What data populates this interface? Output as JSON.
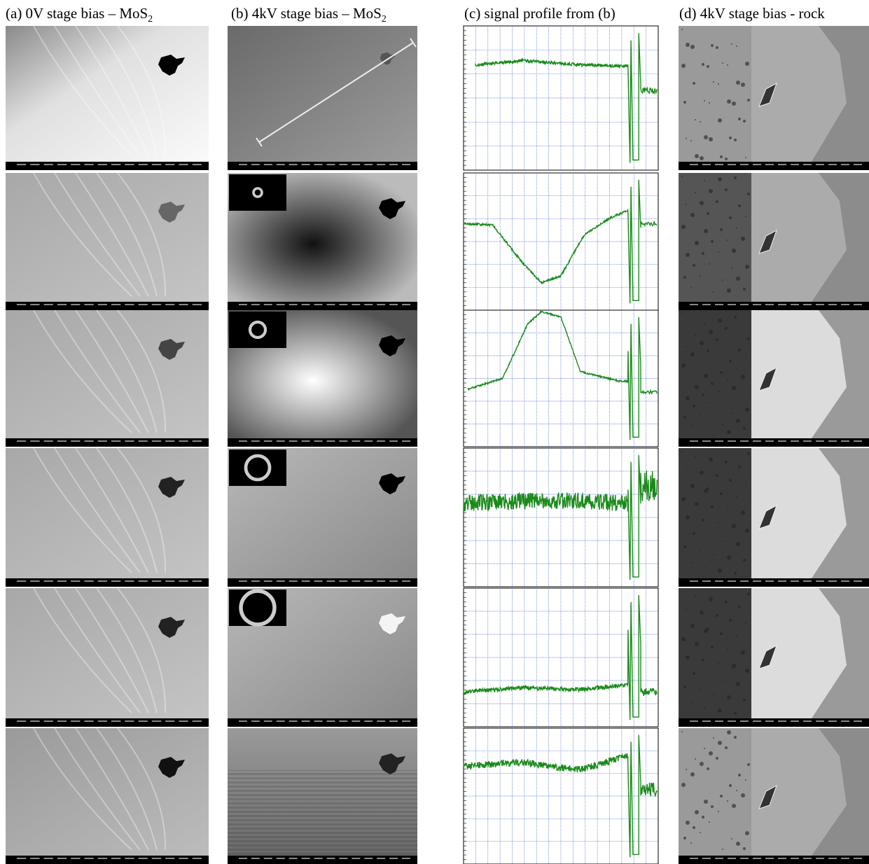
{
  "figure": {
    "panels": [
      {
        "title": "(a) 0V stage bias – MoS",
        "subscript": "2"
      },
      {
        "title": "(b) 4kV stage bias – MoS",
        "subscript": "2"
      },
      {
        "title": "(c) signal profile from (b)"
      },
      {
        "title": "(d) 4kV stage bias - rock"
      }
    ]
  }
}
